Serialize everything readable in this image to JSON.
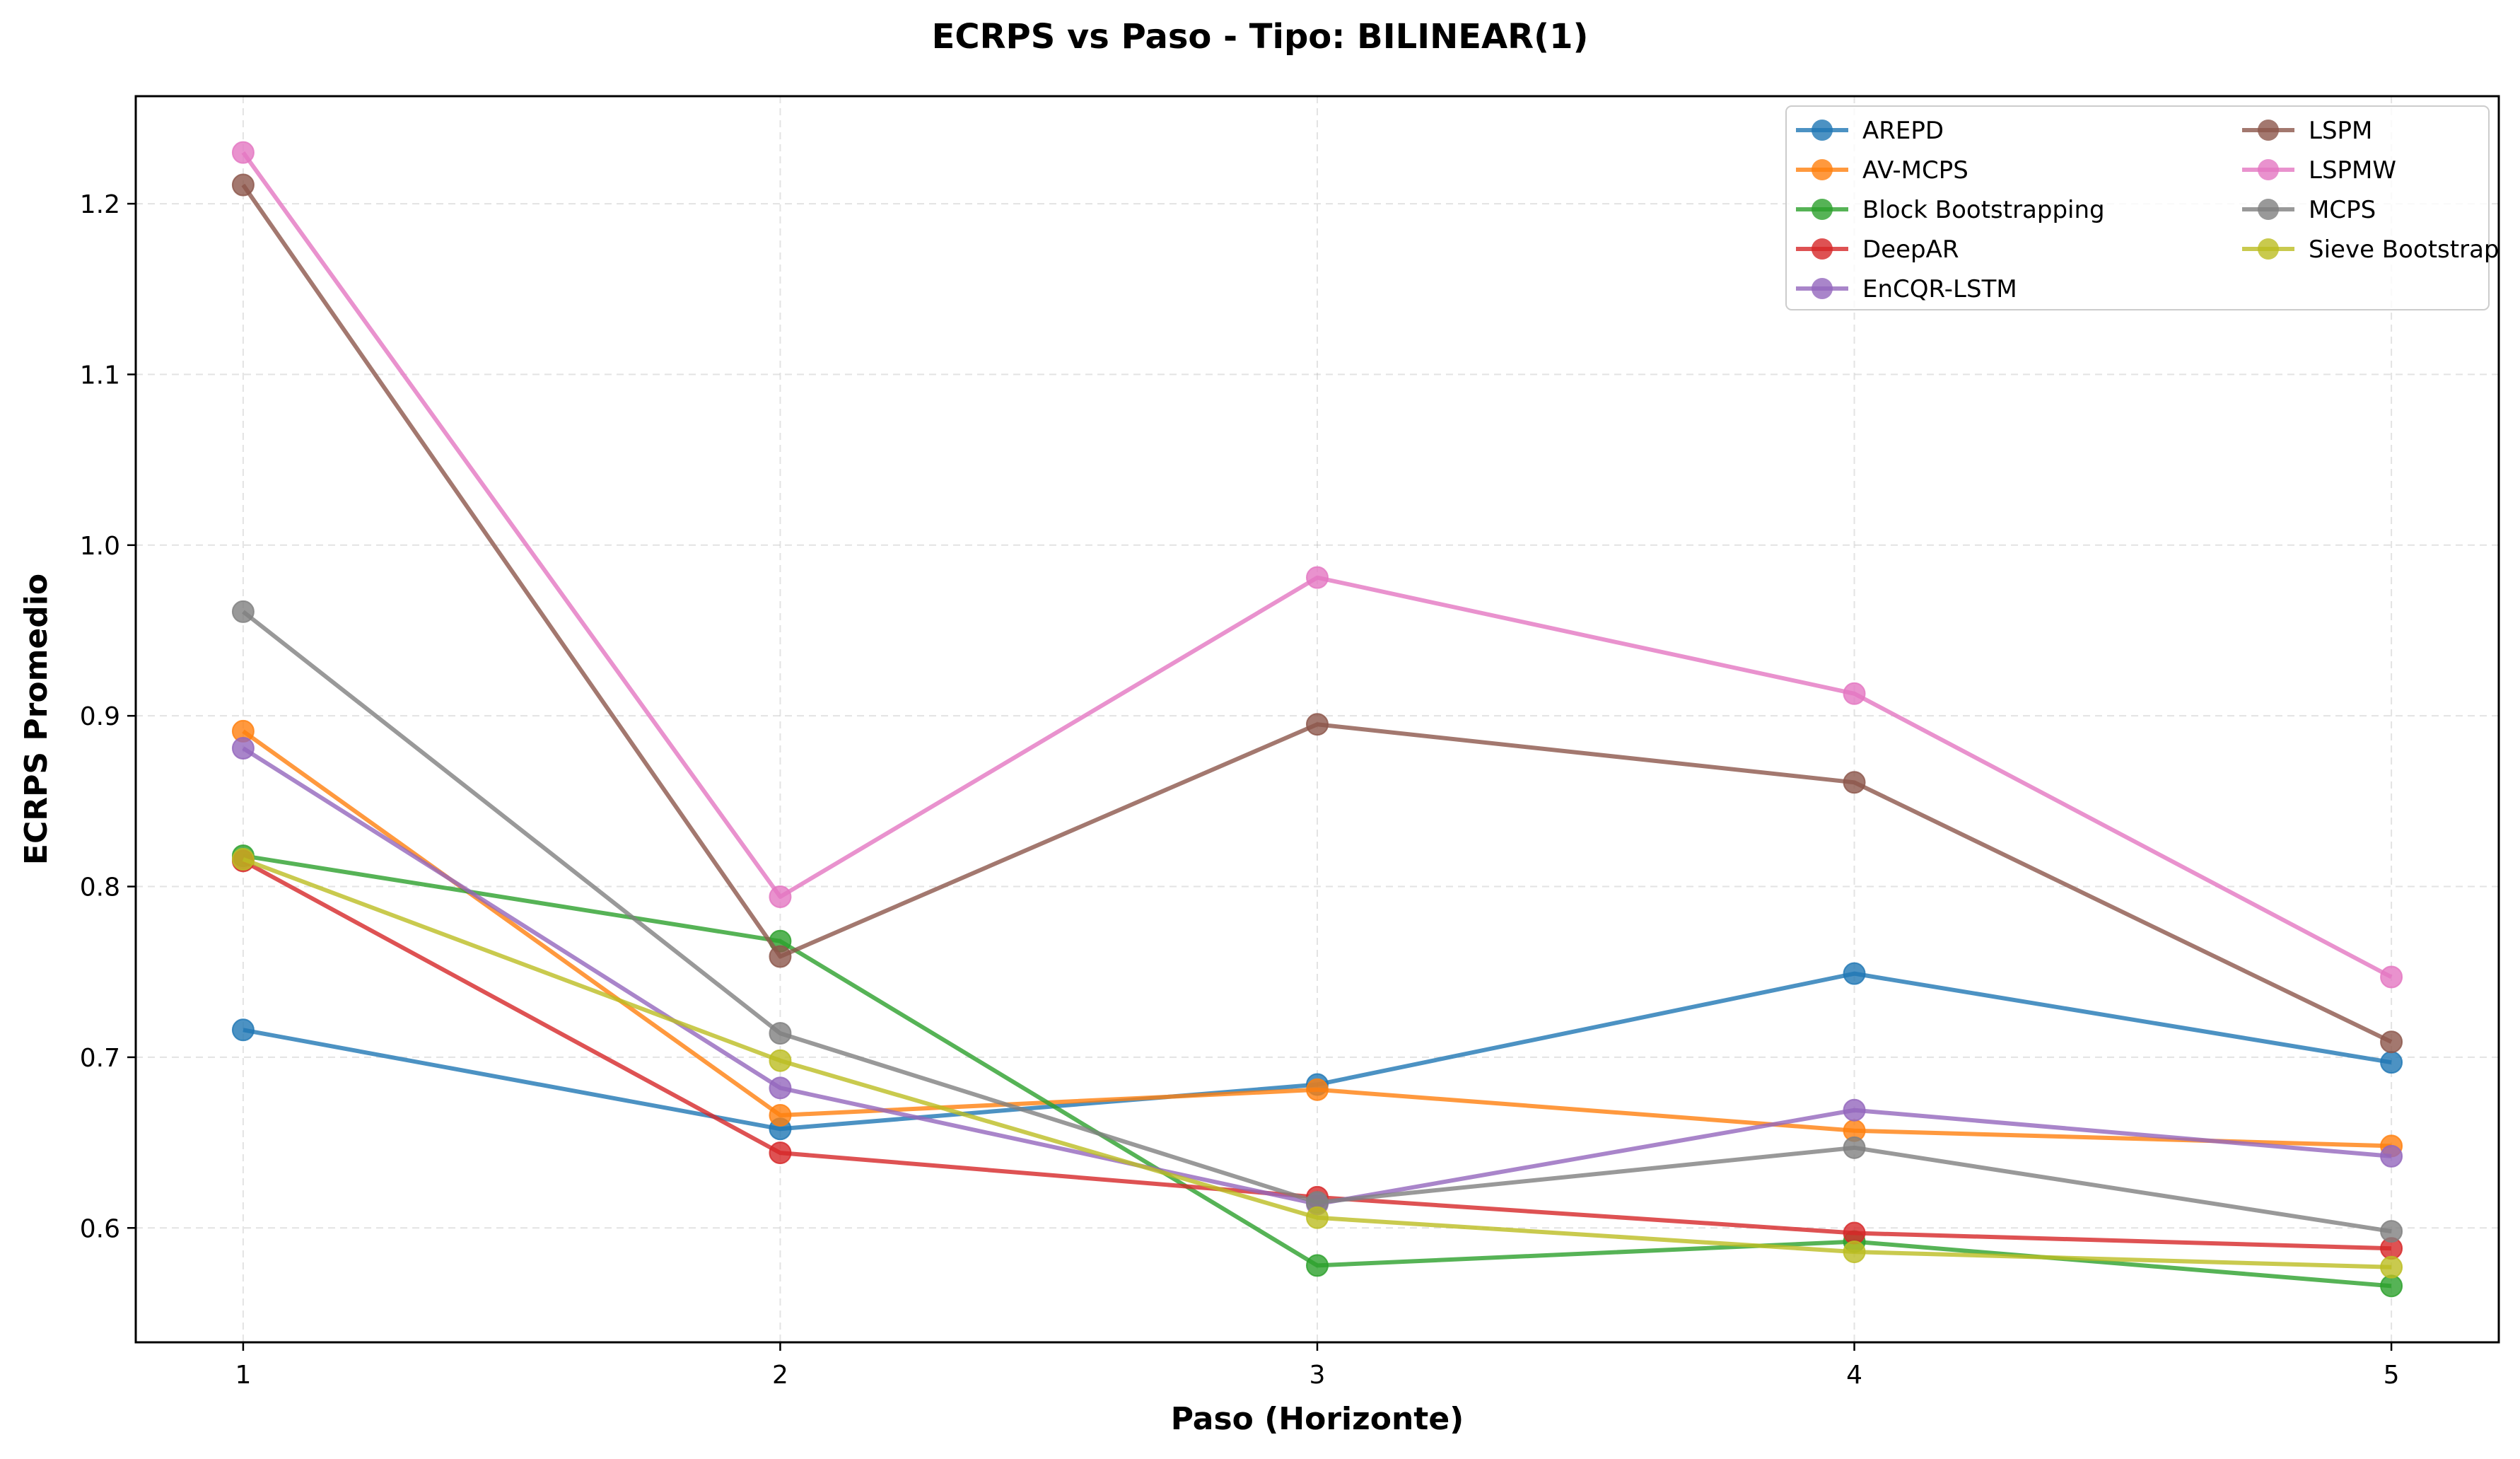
{
  "chart_data": {
    "type": "line",
    "title": "ECRPS vs Paso - Tipo: BILINEAR(1)",
    "xlabel": "Paso (Horizonte)",
    "ylabel": "ECRPS Promedio",
    "x": [
      1,
      2,
      3,
      4,
      5
    ],
    "x_ticks": [
      "1",
      "2",
      "3",
      "4",
      "5"
    ],
    "xlim": [
      0.8,
      5.2
    ],
    "ylim": [
      0.533,
      1.263
    ],
    "y_ticks": [
      0.6,
      0.7,
      0.8,
      0.9,
      1.0,
      1.1,
      1.2
    ],
    "y_tick_labels": [
      "0.6",
      "0.7",
      "0.8",
      "0.9",
      "1.0",
      "1.1",
      "1.2"
    ],
    "grid": true,
    "legend_position": "top-right",
    "legend_columns": 2,
    "series": [
      {
        "name": "AREPD",
        "color": "#1f77b4",
        "values": [
          0.716,
          0.658,
          0.684,
          0.749,
          0.697
        ]
      },
      {
        "name": "AV-MCPS",
        "color": "#ff7f0e",
        "values": [
          0.891,
          0.666,
          0.681,
          0.657,
          0.648
        ]
      },
      {
        "name": "Block Bootstrapping",
        "color": "#2ca02c",
        "values": [
          0.818,
          0.768,
          0.578,
          0.592,
          0.566
        ]
      },
      {
        "name": "DeepAR",
        "color": "#d62728",
        "values": [
          0.815,
          0.644,
          0.618,
          0.597,
          0.588
        ]
      },
      {
        "name": "EnCQR-LSTM",
        "color": "#9467bd",
        "values": [
          0.881,
          0.682,
          0.614,
          0.669,
          0.642
        ]
      },
      {
        "name": "LSPM",
        "color": "#8c564b",
        "values": [
          1.211,
          0.759,
          0.895,
          0.861,
          0.709
        ]
      },
      {
        "name": "LSPMW",
        "color": "#e377c2",
        "values": [
          1.23,
          0.794,
          0.981,
          0.913,
          0.747
        ]
      },
      {
        "name": "MCPS",
        "color": "#7f7f7f",
        "values": [
          0.961,
          0.714,
          0.615,
          0.647,
          0.598
        ]
      },
      {
        "name": "Sieve Bootstrap",
        "color": "#bcbd22",
        "values": [
          0.816,
          0.698,
          0.606,
          0.586,
          0.577
        ]
      }
    ]
  }
}
